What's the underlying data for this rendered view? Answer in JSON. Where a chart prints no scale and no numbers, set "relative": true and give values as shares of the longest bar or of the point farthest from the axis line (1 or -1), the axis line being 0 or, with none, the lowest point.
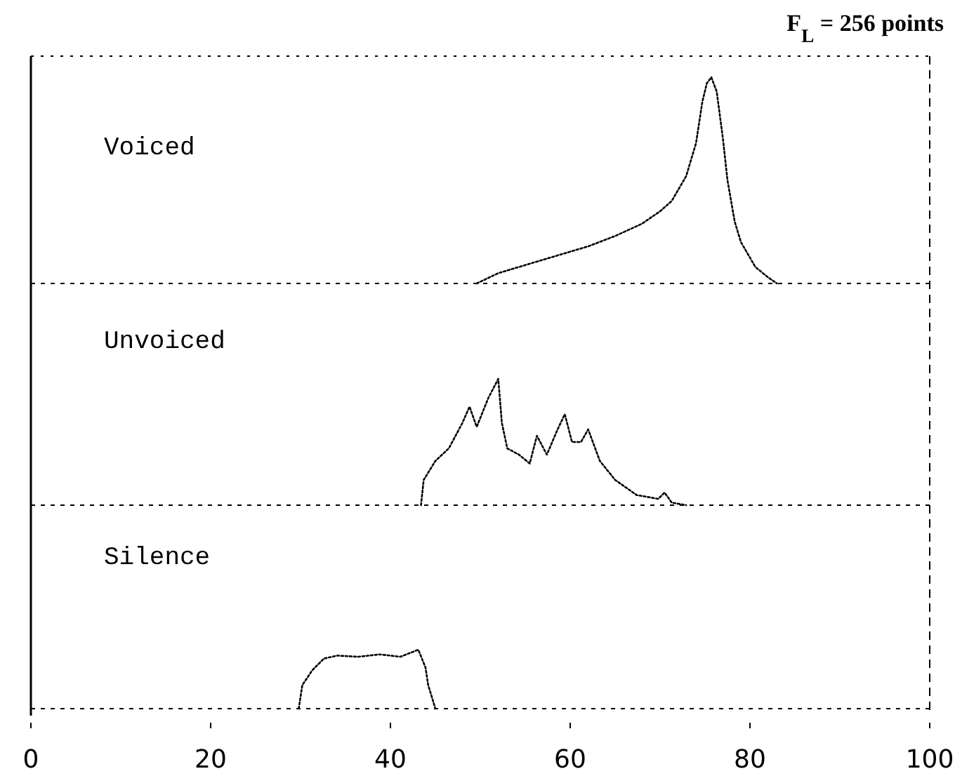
{
  "chart_data": [
    {
      "type": "line",
      "title": "Voiced",
      "annotations": [
        "F$_{L}$ = 256 points"
      ],
      "relative": true,
      "xlim": [
        0,
        100
      ],
      "tick_labels": false,
      "line_style": "dotted",
      "series": [
        {
          "color": "#000000",
          "x": [
            49.6,
            52,
            56.6,
            62,
            65,
            68,
            70,
            71.3,
            72.9,
            74,
            74.7,
            75.2,
            75.7,
            76.3,
            77,
            77.5,
            78.3,
            79,
            80.6,
            82,
            83
          ],
          "values": [
            0,
            0.05,
            0.11,
            0.18,
            0.23,
            0.29,
            0.35,
            0.4,
            0.52,
            0.68,
            0.88,
            0.97,
            1,
            0.93,
            0.7,
            0.5,
            0.3,
            0.2,
            0.08,
            0.03,
            0
          ]
        }
      ]
    },
    {
      "type": "line",
      "title": "Unvoiced",
      "relative": true,
      "xlim": [
        0,
        100
      ],
      "tick_labels": false,
      "line_style": "dotted",
      "series": [
        {
          "color": "#000000",
          "x": [
            43.4,
            43.7,
            45,
            46.5,
            48,
            48.8,
            49.6,
            50.9,
            52,
            52.4,
            53,
            54.3,
            55.5,
            56.3,
            57.4,
            58.6,
            59.4,
            60.2,
            61.2,
            62,
            63.3,
            65,
            67.4,
            69.8,
            70.5,
            71.3,
            72.9
          ],
          "values": [
            0,
            0.2,
            0.35,
            0.45,
            0.65,
            0.78,
            0.62,
            0.85,
            1,
            0.65,
            0.45,
            0.4,
            0.33,
            0.55,
            0.4,
            0.6,
            0.72,
            0.5,
            0.5,
            0.6,
            0.35,
            0.2,
            0.08,
            0.05,
            0.1,
            0.02,
            0
          ]
        }
      ]
    },
    {
      "type": "line",
      "title": "Silence",
      "relative": true,
      "xlim": [
        0,
        100
      ],
      "xticks": [
        0,
        20,
        40,
        60,
        80,
        100
      ],
      "tick_labels": "x",
      "line_style": "dotted",
      "series": [
        {
          "color": "#000000",
          "x": [
            29.8,
            30.2,
            31.3,
            32.6,
            34.1,
            36.4,
            38.8,
            41.1,
            43.1,
            43.9,
            44.2,
            45
          ],
          "values": [
            0,
            0.4,
            0.65,
            0.85,
            0.9,
            0.88,
            0.92,
            0.88,
            1,
            0.7,
            0.4,
            0
          ]
        }
      ]
    }
  ]
}
